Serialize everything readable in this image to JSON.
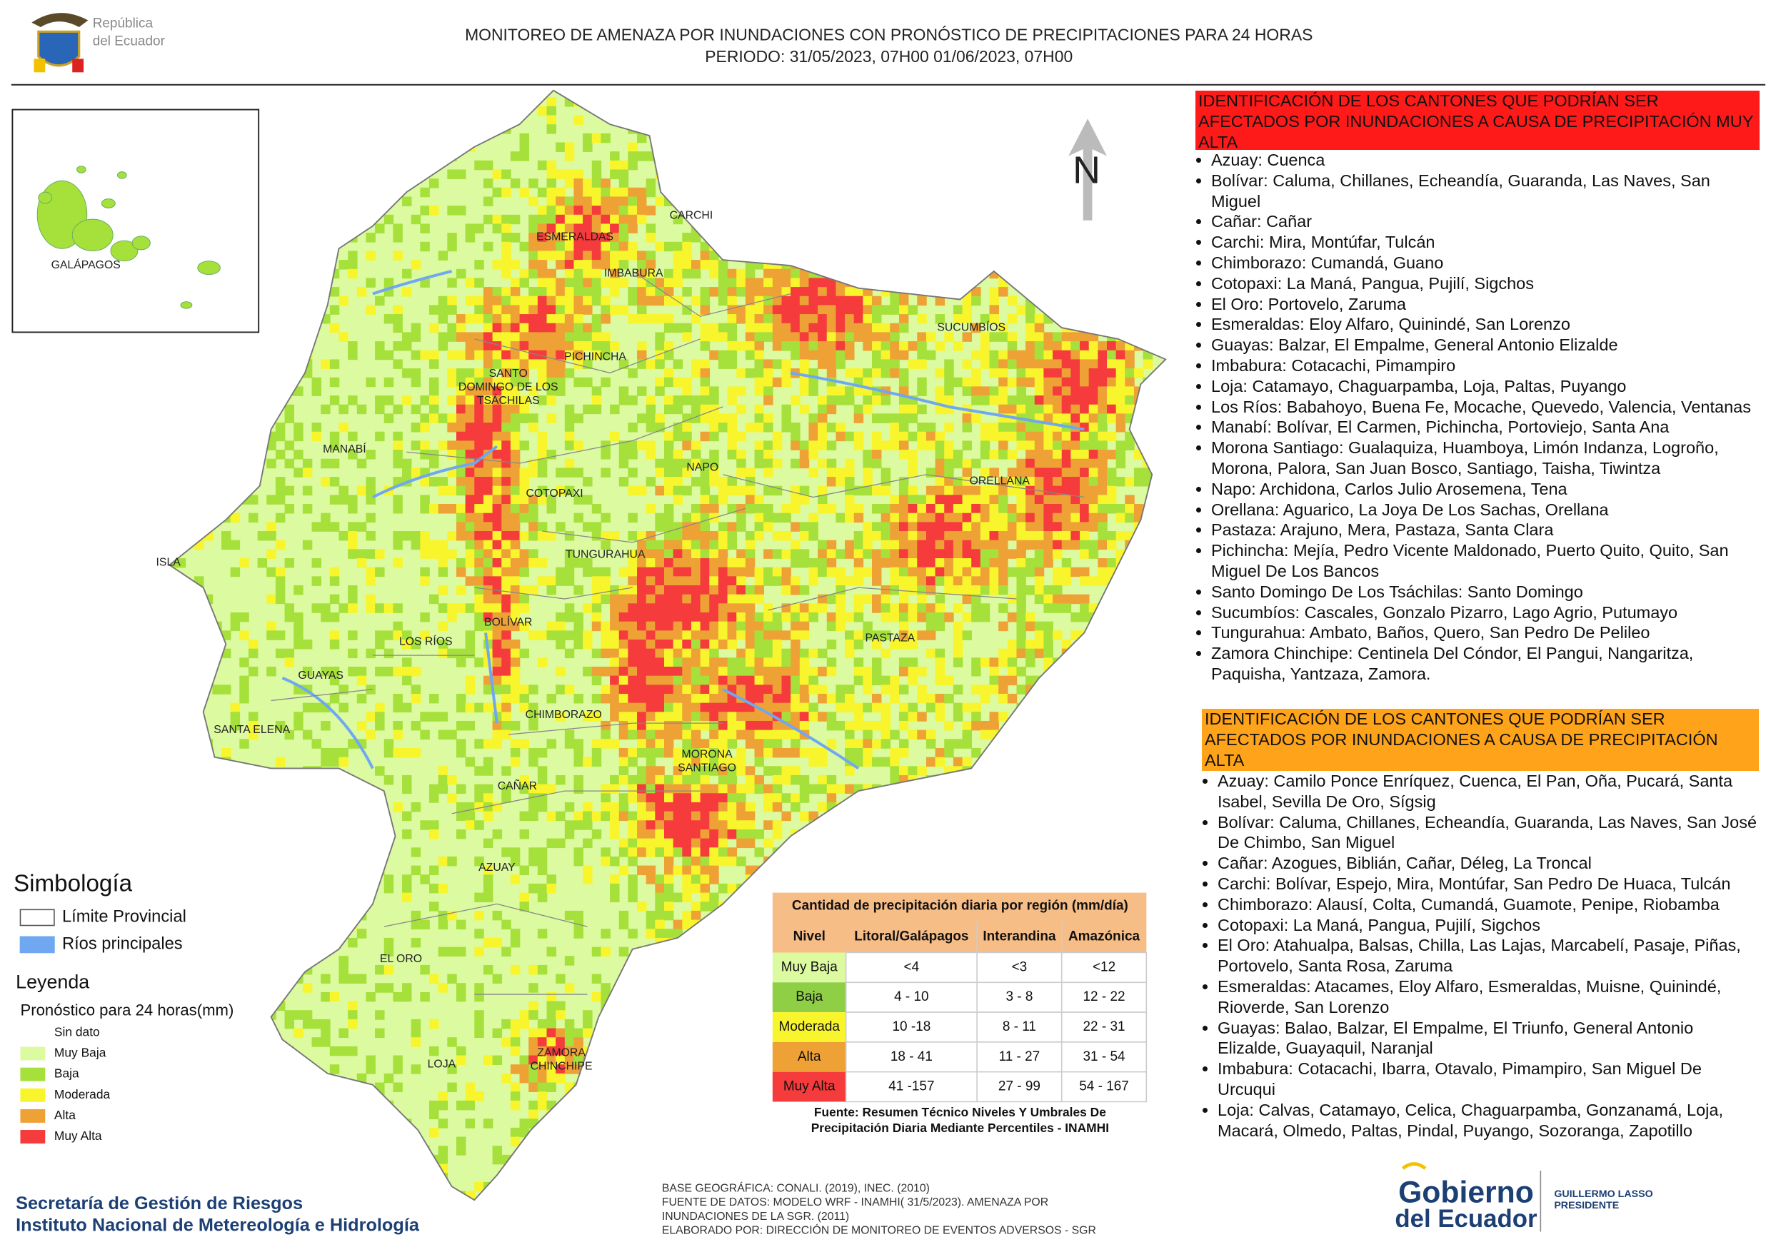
{
  "header": {
    "title_lines": [
      "MONITOREO DE AMENAZA POR INUNDACIONES  CON PRONÓSTICO DE  PRECIPITACIONES PARA 24 HORAS",
      "PERIODO: 31/05/2023, 07H00 01/06/2023, 07H00"
    ],
    "logo_lines": [
      "República",
      "del Ecuador"
    ]
  },
  "map": {
    "north": "N",
    "inset_label": "GALÁPAGOS",
    "labels": [
      [
        "CARCHI"
      ],
      [
        "ESMERALDAS"
      ],
      [
        "IMBABURA"
      ],
      [
        "SUCUMBÍOS"
      ],
      [
        "PICHINCHA"
      ],
      [
        "SANTO",
        "DOMINGO DE LOS",
        "TSÁCHILAS"
      ],
      [
        "MANABÍ"
      ],
      [
        "NAPO"
      ],
      [
        "ORELLANA"
      ],
      [
        "COTOPAXI"
      ],
      [
        "TUNGURAHUA"
      ],
      [
        "ISLA"
      ],
      [
        "BOLÍVAR"
      ],
      [
        "LOS RÍOS"
      ],
      [
        "PASTAZA"
      ],
      [
        "GUAYAS"
      ],
      [
        "CHIMBORAZO"
      ],
      [
        "SANTA ELENA"
      ],
      [
        "MORONA",
        "SANTIAGO"
      ],
      [
        "CAÑAR"
      ],
      [
        "AZUAY"
      ],
      [
        "EL ORO"
      ],
      [
        "ZAMORA",
        "CHINCHIPE"
      ],
      [
        "LOJA"
      ]
    ]
  },
  "legend": {
    "symbology_title": "Simbología",
    "symbols": [
      {
        "name": "Límite Provincial",
        "color": "#ffffff"
      },
      {
        "name": "Ríos principales",
        "color": "#6fa8f0"
      }
    ],
    "title": "Leyenda",
    "subtitle": "Pronóstico para 24 horas(mm)",
    "levels": [
      {
        "name": "Sin dato"
      },
      {
        "name": "Muy Baja",
        "color": "#dcfaa0"
      },
      {
        "name": "Baja",
        "color": "#a6e03a"
      },
      {
        "name": "Moderada",
        "color": "#f8f52c"
      },
      {
        "name": "Alta",
        "color": "#eea236"
      },
      {
        "name": "Muy Alta",
        "color": "#f53b3b"
      }
    ]
  },
  "table": {
    "title": "Cantidad de precipitación diaria por región (mm/día)",
    "columns": [
      "Nivel",
      "Litoral/Galápagos",
      "Interandina",
      "Amazónica"
    ],
    "rows": [
      [
        "Muy Baja",
        "<4",
        "<3",
        "<12"
      ],
      [
        "Baja",
        "4 - 10",
        "3 - 8",
        "12 - 22"
      ],
      [
        "Moderada",
        "10 -18",
        "8 - 11",
        "22 - 31"
      ],
      [
        "Alta",
        "18 - 41",
        "11 - 27",
        "31 - 54"
      ],
      [
        "Muy Alta",
        "41 -157",
        "27 - 99",
        "54 - 167"
      ]
    ],
    "row_colors": [
      "#dcfaa0",
      "#8fcf45",
      "#f8f52c",
      "#eea236",
      "#f53b3b"
    ],
    "source_lines": [
      "Fuente: Resumen Técnico Niveles Y Umbrales De",
      "Precipitación Diaria Mediante Percentiles - INAMHI"
    ]
  },
  "panels": [
    {
      "title": "IDENTIFICACIÓN DE LOS CANTONES QUE PODRÍAN SER AFECTADOS POR INUNDACIONES  A CAUSA DE PRECIPITACIÓN MUY ALTA",
      "color": "#ff1a1a",
      "items": [
        "Azuay: Cuenca",
        "Bolívar: Caluma, Chillanes, Echeandía, Guaranda, Las Naves, San Miguel",
        "Cañar: Cañar",
        "Carchi: Mira, Montúfar, Tulcán",
        "Chimborazo: Cumandá, Guano",
        "Cotopaxi: La Maná, Pangua, Pujilí, Sigchos",
        "El Oro: Portovelo, Zaruma",
        "Esmeraldas: Eloy Alfaro, Quinindé, San Lorenzo",
        "Guayas: Balzar, El Empalme, General Antonio Elizalde",
        "Imbabura: Cotacachi, Pimampiro",
        "Loja: Catamayo, Chaguarpamba, Loja, Paltas, Puyango",
        "Los Ríos: Babahoyo, Buena Fe, Mocache, Quevedo, Valencia, Ventanas",
        "Manabí: Bolívar, El Carmen, Pichincha, Portoviejo, Santa Ana",
        "Morona Santiago: Gualaquiza, Huamboya, Limón Indanza, Logroño, Morona, Palora, San Juan Bosco, Santiago, Taisha, Tiwintza",
        "Napo: Archidona, Carlos Julio Arosemena, Tena",
        "Orellana: Aguarico, La Joya De Los Sachas, Orellana",
        "Pastaza: Arajuno, Mera, Pastaza, Santa Clara",
        "Pichincha: Mejía, Pedro Vicente Maldonado, Puerto Quito, Quito, San Miguel De Los Bancos",
        "Santo Domingo De Los Tsáchilas: Santo Domingo",
        "Sucumbíos: Cascales, Gonzalo Pizarro, Lago Agrio, Putumayo",
        "Tungurahua: Ambato, Baños, Quero, San Pedro De Pelileo",
        "Zamora Chinchipe: Centinela Del Cóndor, El Pangui, Nangaritza, Paquisha, Yantzaza, Zamora."
      ]
    },
    {
      "title": "IDENTIFICACIÓN DE LOS CANTONES QUE  PODRÍAN SER AFECTADOS POR INUNDACIONES  A CAUSA DE PRECIPITACIÓN ALTA",
      "color": "#ffa31a",
      "items": [
        "Azuay: Camilo Ponce Enríquez, Cuenca, El Pan, Oña, Pucará, Santa Isabel, Sevilla De Oro, Sígsig",
        "Bolívar: Caluma, Chillanes, Echeandía, Guaranda, Las Naves, San José De Chimbo, San Miguel",
        "Cañar: Azogues, Biblián, Cañar, Déleg, La Troncal",
        "Carchi: Bolívar, Espejo, Mira, Montúfar, San Pedro De Huaca, Tulcán",
        "Chimborazo: Alausí, Colta, Cumandá, Guamote, Penipe, Riobamba",
        "Cotopaxi: La Maná, Pangua, Pujilí, Sigchos",
        "El Oro: Atahualpa, Balsas, Chilla, Las Lajas, Marcabelí, Pasaje, Piñas, Portovelo, Santa Rosa, Zaruma",
        "Esmeraldas: Atacames, Eloy Alfaro, Esmeraldas, Muisne, Quinindé, Rioverde, San Lorenzo",
        "Guayas: Balao, Balzar, El Empalme, El Triunfo, General Antonio Elizalde, Guayaquil, Naranjal",
        "Imbabura: Cotacachi, Ibarra, Otavalo, Pimampiro, San Miguel De Urcuqui",
        "Loja: Calvas, Catamayo, Celica, Chaguarpamba, Gonzanamá, Loja, Macará, Olmedo, Paltas, Pindal, Puyango, Sozoranga, Zapotillo"
      ]
    }
  ],
  "footer": {
    "org_lines": [
      "Secretaría de Gestión de Riesgos",
      "Instituto Nacional de Metereología e Hidrología"
    ],
    "credit_lines": [
      "BASE GEOGRÁFICA: CONALI. (2019), INEC. (2010)",
      "FUENTE DE DATOS: MODELO WRF - INAMHI( 31/5/2023).  AMENAZA POR",
      "INUNDACIONES DE LA SGR. (2011)",
      "ELABORADO POR: DIRECCIÓN DE MONITOREO DE EVENTOS ADVERSOS - SGR"
    ],
    "gov_lines": [
      "Gobierno",
      "del Ecuador"
    ],
    "president_lines": [
      "GUILLERMO LASSO",
      "PRESIDENTE"
    ]
  }
}
